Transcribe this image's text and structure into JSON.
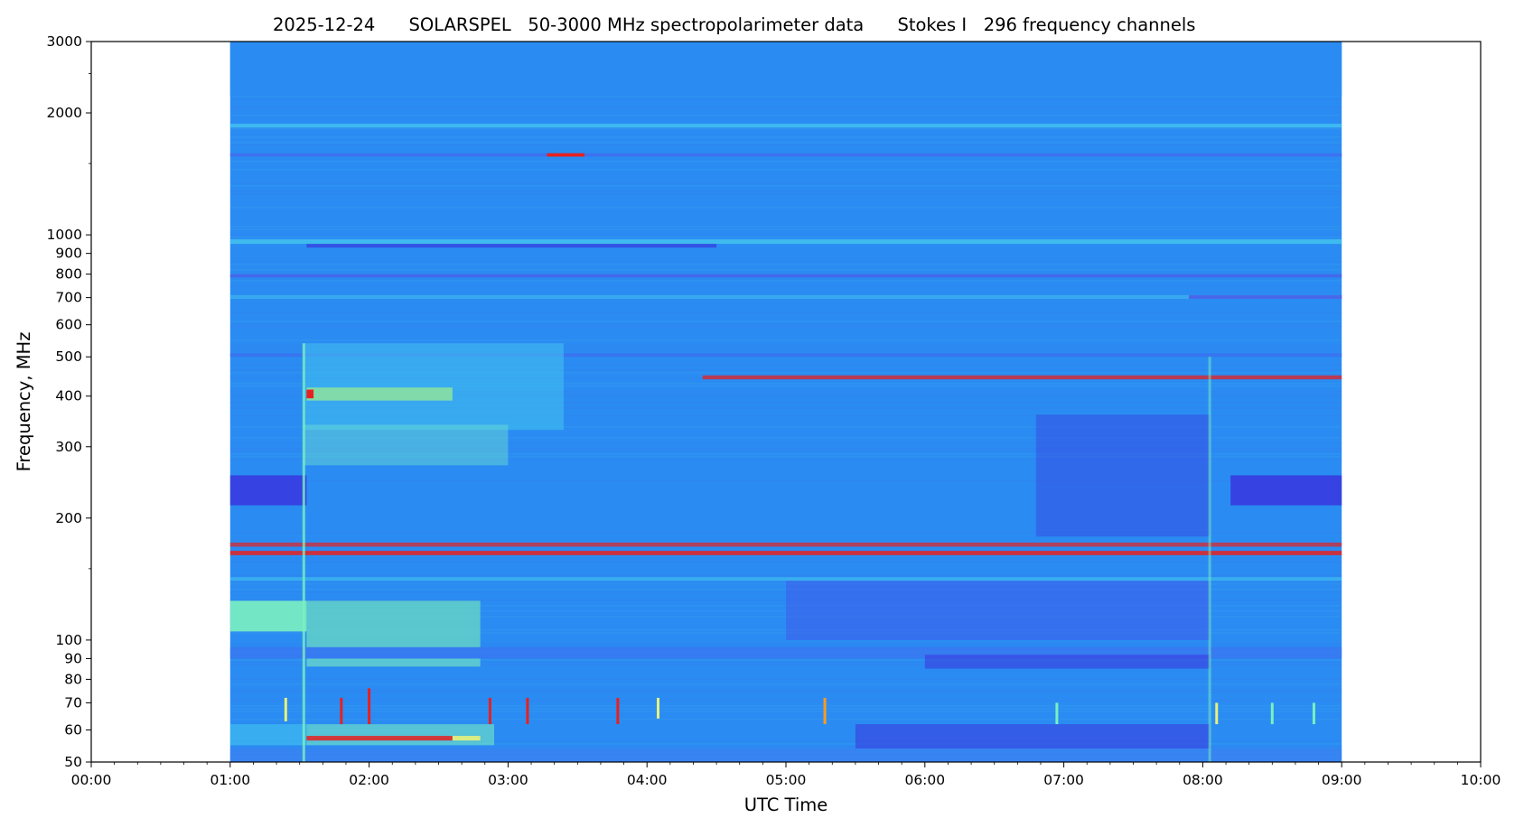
{
  "chart_data": {
    "type": "heatmap",
    "title": "2025-12-24      SOLARSPEL   50-3000 MHz spectropolarimeter data      Stokes I   296 frequency channels",
    "xlabel": "UTC Time",
    "ylabel": "Frequency, MHz",
    "x_axis": {
      "unit": "hours",
      "range": [
        0,
        10
      ],
      "ticks": [
        {
          "value": 0,
          "label": "00:00"
        },
        {
          "value": 1,
          "label": "01:00"
        },
        {
          "value": 2,
          "label": "02:00"
        },
        {
          "value": 3,
          "label": "03:00"
        },
        {
          "value": 4,
          "label": "04:00"
        },
        {
          "value": 5,
          "label": "05:00"
        },
        {
          "value": 6,
          "label": "06:00"
        },
        {
          "value": 7,
          "label": "07:00"
        },
        {
          "value": 8,
          "label": "08:00"
        },
        {
          "value": 9,
          "label": "09:00"
        },
        {
          "value": 10,
          "label": "10:00"
        }
      ]
    },
    "y_axis": {
      "scale": "log",
      "unit": "MHz",
      "range": [
        50,
        3000
      ],
      "ticks": [
        {
          "value": 50,
          "label": "50"
        },
        {
          "value": 60,
          "label": "60"
        },
        {
          "value": 70,
          "label": "70"
        },
        {
          "value": 80,
          "label": "80"
        },
        {
          "value": 90,
          "label": "90"
        },
        {
          "value": 100,
          "label": "100"
        },
        {
          "value": 200,
          "label": "200"
        },
        {
          "value": 300,
          "label": "300"
        },
        {
          "value": 400,
          "label": "400"
        },
        {
          "value": 500,
          "label": "500"
        },
        {
          "value": 600,
          "label": "600"
        },
        {
          "value": 700,
          "label": "700"
        },
        {
          "value": 800,
          "label": "800"
        },
        {
          "value": 900,
          "label": "900"
        },
        {
          "value": 1000,
          "label": "1000"
        },
        {
          "value": 2000,
          "label": "2000"
        },
        {
          "value": 3000,
          "label": "3000"
        }
      ],
      "minor_ticks": [
        150,
        1500,
        2500
      ]
    },
    "data_coverage": {
      "t_start": 1.0,
      "t_end": 9.0
    },
    "colormap": [
      "#3b2bdc",
      "#3f7df2",
      "#2f8ff0",
      "#43c3ee",
      "#7af0c0",
      "#e8f27a",
      "#ff9a1f",
      "#e8201f"
    ],
    "background_color": "#2a8cf2",
    "bands": [
      {
        "f1": 2200,
        "f2": 3000,
        "t1": 1.0,
        "t2": 9.0,
        "color": "#2a8cf2",
        "opacity": 1
      },
      {
        "f1": 1840,
        "f2": 1880,
        "t1": 1.0,
        "t2": 9.0,
        "color": "#43c3ee",
        "opacity": 0.8
      },
      {
        "f1": 1560,
        "f2": 1590,
        "t1": 1.0,
        "t2": 9.0,
        "color": "#3f6ff0",
        "opacity": 0.9
      },
      {
        "f1": 1560,
        "f2": 1590,
        "t1": 3.28,
        "t2": 3.55,
        "color": "#e8201f",
        "opacity": 1
      },
      {
        "f1": 950,
        "f2": 975,
        "t1": 1.0,
        "t2": 9.0,
        "color": "#43c3ee",
        "opacity": 0.85
      },
      {
        "f1": 930,
        "f2": 950,
        "t1": 1.55,
        "t2": 4.5,
        "color": "#3b2bdc",
        "opacity": 0.6
      },
      {
        "f1": 785,
        "f2": 800,
        "t1": 1.0,
        "t2": 9.0,
        "color": "#4a60e8",
        "opacity": 0.8
      },
      {
        "f1": 695,
        "f2": 710,
        "t1": 1.0,
        "t2": 9.0,
        "color": "#43c3ee",
        "opacity": 0.55
      },
      {
        "f1": 695,
        "f2": 710,
        "t1": 7.9,
        "t2": 9.0,
        "color": "#4a60e8",
        "opacity": 0.9
      },
      {
        "f1": 500,
        "f2": 510,
        "t1": 1.0,
        "t2": 9.0,
        "color": "#3f6ff0",
        "opacity": 0.8
      },
      {
        "f1": 330,
        "f2": 540,
        "t1": 1.53,
        "t2": 3.4,
        "color": "#43c3ee",
        "opacity": 0.55
      },
      {
        "f1": 390,
        "f2": 420,
        "t1": 1.55,
        "t2": 2.6,
        "color": "#9ef08a",
        "opacity": 0.7
      },
      {
        "f1": 395,
        "f2": 415,
        "t1": 1.55,
        "t2": 1.6,
        "color": "#e8201f",
        "opacity": 1
      },
      {
        "f1": 440,
        "f2": 450,
        "t1": 4.4,
        "t2": 9.0,
        "color": "#e8201f",
        "opacity": 0.75
      },
      {
        "f1": 270,
        "f2": 340,
        "t1": 1.53,
        "t2": 3.0,
        "color": "#6fe0d0",
        "opacity": 0.45
      },
      {
        "f1": 180,
        "f2": 360,
        "t1": 6.8,
        "t2": 8.05,
        "color": "#3b2bdc",
        "opacity": 0.35
      },
      {
        "f1": 215,
        "f2": 255,
        "t1": 1.0,
        "t2": 1.55,
        "color": "#3b2bdc",
        "opacity": 0.75
      },
      {
        "f1": 215,
        "f2": 255,
        "t1": 8.2,
        "t2": 9.0,
        "color": "#3b2bdc",
        "opacity": 0.75
      },
      {
        "f1": 170,
        "f2": 174,
        "t1": 1.0,
        "t2": 9.0,
        "color": "#e8201f",
        "opacity": 0.7
      },
      {
        "f1": 162,
        "f2": 166,
        "t1": 1.0,
        "t2": 9.0,
        "color": "#e8201f",
        "opacity": 0.85
      },
      {
        "f1": 140,
        "f2": 143,
        "t1": 1.0,
        "t2": 9.0,
        "color": "#43c3ee",
        "opacity": 0.6
      },
      {
        "f1": 100,
        "f2": 140,
        "t1": 5.0,
        "t2": 8.05,
        "color": "#3f55ea",
        "opacity": 0.5
      },
      {
        "f1": 105,
        "f2": 125,
        "t1": 1.0,
        "t2": 1.55,
        "color": "#7af0c0",
        "opacity": 0.9
      },
      {
        "f1": 96,
        "f2": 125,
        "t1": 1.55,
        "t2": 2.8,
        "color": "#6fe0c0",
        "opacity": 0.7
      },
      {
        "f1": 90,
        "f2": 96,
        "t1": 1.0,
        "t2": 9.0,
        "color": "#3f6ff0",
        "opacity": 0.6
      },
      {
        "f1": 86,
        "f2": 90,
        "t1": 1.55,
        "t2": 2.8,
        "color": "#7af0c0",
        "opacity": 0.6
      },
      {
        "f1": 85,
        "f2": 92,
        "t1": 6.0,
        "t2": 8.05,
        "color": "#3b2bdc",
        "opacity": 0.5
      },
      {
        "f1": 55,
        "f2": 62,
        "t1": 1.0,
        "t2": 1.55,
        "color": "#43c3ee",
        "opacity": 0.6
      },
      {
        "f1": 55,
        "f2": 62,
        "t1": 1.55,
        "t2": 2.9,
        "color": "#7af0c0",
        "opacity": 0.55
      },
      {
        "f1": 56.5,
        "f2": 58,
        "t1": 1.55,
        "t2": 2.6,
        "color": "#e8201f",
        "opacity": 0.85
      },
      {
        "f1": 56.5,
        "f2": 58,
        "t1": 2.6,
        "t2": 2.8,
        "color": "#e8f27a",
        "opacity": 0.9
      },
      {
        "f1": 54,
        "f2": 62,
        "t1": 5.5,
        "t2": 8.05,
        "color": "#3b2bdc",
        "opacity": 0.5
      },
      {
        "f1": 50,
        "f2": 54,
        "t1": 1.0,
        "t2": 9.0,
        "color": "#3f7df2",
        "opacity": 0.6
      }
    ],
    "vertical_features": [
      {
        "t": 1.53,
        "f1": 50,
        "f2": 540,
        "color": "#7af0c0",
        "opacity": 0.8
      },
      {
        "t": 8.05,
        "f1": 50,
        "f2": 500,
        "color": "#7af0c0",
        "opacity": 0.5
      },
      {
        "t": 1.4,
        "f1": 63,
        "f2": 72,
        "color": "#e8f27a",
        "opacity": 1
      },
      {
        "t": 1.8,
        "f1": 62,
        "f2": 72,
        "color": "#e8201f",
        "opacity": 1
      },
      {
        "t": 2.0,
        "f1": 62,
        "f2": 76,
        "color": "#e8201f",
        "opacity": 1
      },
      {
        "t": 2.87,
        "f1": 62,
        "f2": 72,
        "color": "#e8201f",
        "opacity": 1
      },
      {
        "t": 3.14,
        "f1": 62,
        "f2": 72,
        "color": "#e8201f",
        "opacity": 1
      },
      {
        "t": 3.79,
        "f1": 62,
        "f2": 72,
        "color": "#e8201f",
        "opacity": 1
      },
      {
        "t": 4.08,
        "f1": 64,
        "f2": 72,
        "color": "#e8f27a",
        "opacity": 1
      },
      {
        "t": 5.28,
        "f1": 62,
        "f2": 72,
        "color": "#ff9a1f",
        "opacity": 1
      },
      {
        "t": 6.95,
        "f1": 62,
        "f2": 70,
        "color": "#7af0c0",
        "opacity": 1
      },
      {
        "t": 8.1,
        "f1": 62,
        "f2": 70,
        "color": "#e8f27a",
        "opacity": 1
      },
      {
        "t": 8.5,
        "f1": 62,
        "f2": 70,
        "color": "#7af0c0",
        "opacity": 1
      },
      {
        "t": 8.8,
        "f1": 62,
        "f2": 70,
        "color": "#7af0c0",
        "opacity": 1
      }
    ]
  }
}
